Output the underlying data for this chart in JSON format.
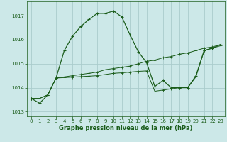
{
  "background_color": "#cce8e8",
  "grid_color": "#aacccc",
  "line_color": "#1a5c1a",
  "xlabel": "Graphe pression niveau de la mer (hPa)",
  "xlim": [
    -0.5,
    23.5
  ],
  "ylim": [
    1012.8,
    1017.6
  ],
  "yticks": [
    1013,
    1014,
    1015,
    1016,
    1017
  ],
  "xticks": [
    0,
    1,
    2,
    3,
    4,
    5,
    6,
    7,
    8,
    9,
    10,
    11,
    12,
    13,
    14,
    15,
    16,
    17,
    18,
    19,
    20,
    21,
    22,
    23
  ],
  "series1_x": [
    0,
    1,
    2,
    3,
    4,
    5,
    6,
    7,
    8,
    9,
    10,
    11,
    12,
    13,
    14,
    15,
    16,
    17,
    18,
    19,
    20,
    21,
    22,
    23
  ],
  "series1_y": [
    1013.55,
    1013.35,
    1013.7,
    1014.4,
    1015.55,
    1016.15,
    1016.55,
    1016.85,
    1017.1,
    1017.1,
    1017.2,
    1016.95,
    1016.2,
    1015.5,
    1015.05,
    1014.05,
    1014.3,
    1014.0,
    1014.0,
    1014.0,
    1014.5,
    1015.55,
    1015.65,
    1015.8
  ],
  "series2_x": [
    0,
    1,
    2,
    3,
    4,
    5,
    6,
    7,
    8,
    9,
    10,
    11,
    12,
    13,
    14,
    15,
    16,
    17,
    18,
    19,
    20,
    21,
    22,
    23
  ],
  "series2_y": [
    1013.55,
    1013.55,
    1013.7,
    1014.4,
    1014.45,
    1014.5,
    1014.55,
    1014.6,
    1014.65,
    1014.75,
    1014.8,
    1014.85,
    1014.9,
    1015.0,
    1015.1,
    1015.15,
    1015.25,
    1015.3,
    1015.4,
    1015.45,
    1015.55,
    1015.65,
    1015.7,
    1015.8
  ],
  "series3_x": [
    0,
    1,
    2,
    3,
    4,
    5,
    6,
    7,
    8,
    9,
    10,
    11,
    12,
    13,
    14,
    15,
    16,
    17,
    18,
    19,
    20,
    21,
    22,
    23
  ],
  "series3_y": [
    1013.55,
    1013.55,
    1013.7,
    1014.4,
    1014.42,
    1014.44,
    1014.46,
    1014.48,
    1014.5,
    1014.55,
    1014.6,
    1014.62,
    1014.65,
    1014.68,
    1014.7,
    1013.85,
    1013.9,
    1013.95,
    1014.0,
    1014.0,
    1014.45,
    1015.55,
    1015.65,
    1015.75
  ]
}
